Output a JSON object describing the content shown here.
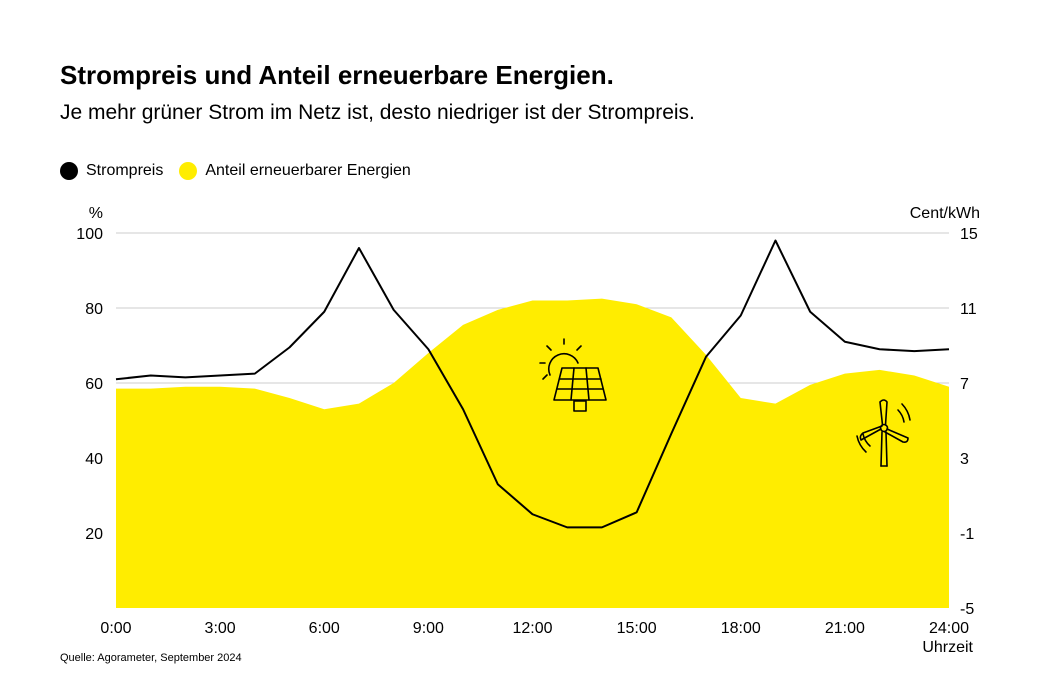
{
  "title": "Strompreis und Anteil erneuerbare Energien.",
  "subtitle": "Je mehr grüner Strom im Netz ist, desto niedriger ist der Strompreis.",
  "source": "Quelle: Agorameter, September 2024",
  "colors": {
    "price": "#000000",
    "renewables": "#FFED00",
    "grid": "#cccccc"
  },
  "legend": {
    "price_label": "Strompreis",
    "renewables_label": "Anteil erneuerbarer Energien"
  },
  "icons": [
    "solar-panel-icon",
    "wind-turbine-icon"
  ],
  "chart_data": {
    "type": "line",
    "x_ticks": [
      "0:00",
      "3:00",
      "6:00",
      "9:00",
      "12:00",
      "15:00",
      "18:00",
      "21:00",
      "24:00"
    ],
    "xlabel": "Uhrzeit",
    "y_left": {
      "unit": "%",
      "range": [
        0,
        100
      ],
      "ticks": [
        "20",
        "40",
        "60",
        "80",
        "100"
      ]
    },
    "y_right": {
      "unit": "Cent/kWh",
      "range": [
        -5,
        15
      ],
      "ticks": [
        "-5",
        "-1",
        "3",
        "7",
        "11",
        "15"
      ]
    },
    "grid": "horizontal",
    "legend_position": "top-left",
    "series": [
      {
        "name": "Anteil erneuerbarer Energien",
        "type": "area",
        "axis": "left",
        "x": [
          0,
          1,
          2,
          3,
          4,
          5,
          6,
          7,
          8,
          9,
          10,
          11,
          12,
          13,
          14,
          15,
          16,
          17,
          18,
          19,
          20,
          21,
          22,
          23,
          24
        ],
        "values": [
          58.5,
          58.5,
          59,
          59,
          58.5,
          56,
          53,
          54.5,
          60,
          68,
          75.5,
          79.5,
          82,
          82,
          82.5,
          81,
          77.5,
          67.5,
          56,
          54.5,
          59.5,
          62.5,
          63.5,
          62,
          59
        ]
      },
      {
        "name": "Strompreis",
        "type": "line",
        "axis": "right",
        "x": [
          0,
          1,
          2,
          3,
          4,
          5,
          6,
          7,
          8,
          9,
          10,
          11,
          12,
          13,
          14,
          15,
          16,
          17,
          18,
          19,
          20,
          21,
          22,
          23,
          24
        ],
        "values": [
          7.2,
          7.4,
          7.3,
          7.4,
          7.5,
          8.9,
          10.8,
          14.2,
          10.9,
          8.8,
          5.6,
          1.6,
          0.0,
          -0.7,
          -0.7,
          0.1,
          4.3,
          8.4,
          10.6,
          14.6,
          10.8,
          9.2,
          8.8,
          8.7,
          8.8
        ]
      }
    ]
  }
}
